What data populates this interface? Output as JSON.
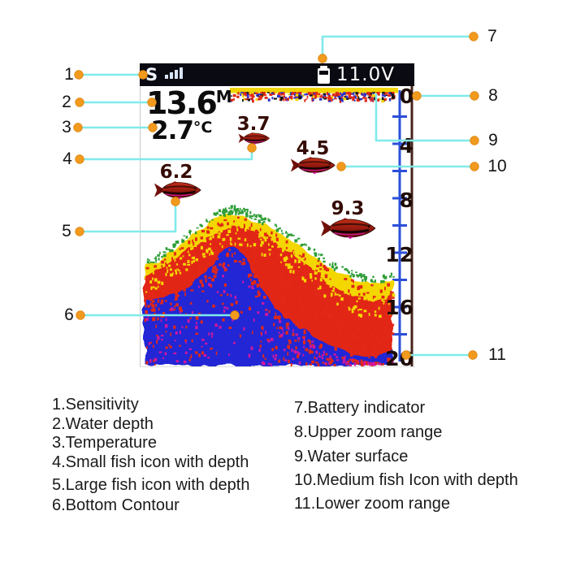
{
  "screen": {
    "status": {
      "sensitivity_label": "S",
      "voltage": "11.0V"
    },
    "depth_readout": {
      "value": "13.6",
      "unit": "M"
    },
    "temp_readout": {
      "value": "2.7",
      "unit": "°C"
    },
    "fish": [
      {
        "depth": "3.7",
        "size": "small"
      },
      {
        "depth": "4.5",
        "size": "medium"
      },
      {
        "depth": "6.2",
        "size": "large"
      },
      {
        "depth": "9.3",
        "size": "large"
      }
    ],
    "depth_scale_ticks": [
      "0",
      "4",
      "8",
      "12",
      "16",
      "20"
    ]
  },
  "callouts": [
    "1",
    "2",
    "3",
    "4",
    "5",
    "6",
    "7",
    "8",
    "9",
    "10",
    "11"
  ],
  "legend_left": [
    {
      "label": "1.Sensitivity"
    },
    {
      "label": "2.Water depth"
    },
    {
      "label": "3.Temperature"
    },
    {
      "label": "4.Small fish icon with depth"
    },
    {
      "label": "5.Large fish icon with depth"
    },
    {
      "label": "6.Bottom Contour"
    }
  ],
  "legend_right": [
    {
      "label": "7.Battery indicator"
    },
    {
      "label": "8.Upper zoom range"
    },
    {
      "label": "9.Water surface"
    },
    {
      "label": "10.Medium fish Icon with depth"
    },
    {
      "label": "11.Lower zoom range"
    }
  ],
  "colors": {
    "callout_line": "#80eaea",
    "callout_marker": "#f29a1d",
    "scale_line": "#2b4fd8",
    "sonar_yellow": "#f4d600",
    "sonar_red": "#e22817",
    "sonar_blue": "#2326d4",
    "sonar_green": "#2e9e38",
    "statusbar_bg": "#0a0a12"
  }
}
